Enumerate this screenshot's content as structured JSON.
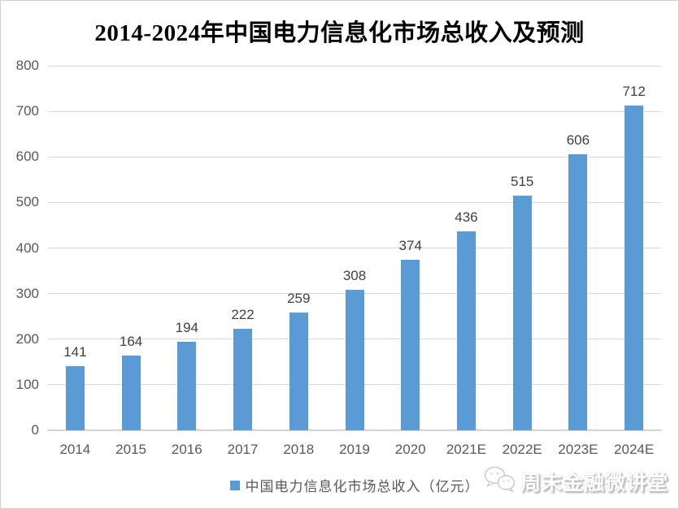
{
  "title": "2014-2024年中国电力信息化市场总收入及预测",
  "chart_data": {
    "type": "bar",
    "title": "2014-2024年中国电力信息化市场总收入及预测",
    "categories": [
      "2014",
      "2015",
      "2016",
      "2017",
      "2018",
      "2019",
      "2020",
      "2021E",
      "2022E",
      "2023E",
      "2024E"
    ],
    "values": [
      141,
      164,
      194,
      222,
      259,
      308,
      374,
      436,
      515,
      606,
      712
    ],
    "series_name": "中国电力信息化市场总收入（亿元）",
    "xlabel": "",
    "ylabel": "",
    "ylim": [
      0,
      800
    ],
    "y_ticks": [
      0,
      100,
      200,
      300,
      400,
      500,
      600,
      700,
      800
    ],
    "grid": true,
    "legend_position": "bottom",
    "data_labels": true
  },
  "legend": {
    "label": "中国电力信息化市场总收入（亿元）"
  },
  "watermark": {
    "icon": "wechat-chat-bubbles-icon",
    "text": "周末金融微讲堂"
  },
  "colors": {
    "bar": "#5B9BD5",
    "gridline": "#D9D9D9",
    "axis_line": "#D3D3D3",
    "tick_label": "#595959",
    "data_label": "#404040",
    "title": "#000000",
    "background": "#FFFFFF",
    "border": "#CFCFCF"
  }
}
